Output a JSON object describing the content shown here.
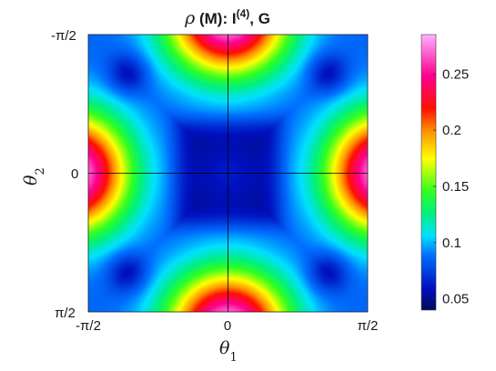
{
  "chart_data": {
    "type": "heatmap",
    "title_symbol": "ρ",
    "title_text": " (M):  I",
    "title_superscript": "(4)",
    "title_suffix": ", G",
    "xlabel": {
      "symbol": "θ",
      "subscript": "1"
    },
    "ylabel": {
      "symbol": "θ",
      "subscript": "2"
    },
    "xlim": [
      "-π/2",
      "π/2"
    ],
    "ylim": [
      "-π/2",
      "π/2"
    ],
    "y_axis_direction": "reversed",
    "x_ticks": [
      "-π/2",
      "0",
      "π/2"
    ],
    "y_ticks": [
      "-π/2",
      "0",
      "π/2"
    ],
    "center_crosshair": true,
    "colormap": "hsv",
    "colorbar": {
      "range": [
        0.04,
        0.285
      ],
      "ticks": [
        0.05,
        0.1,
        0.15,
        0.2,
        0.25
      ],
      "tick_labels": [
        "0.05",
        "0.1",
        "0.15",
        "0.2",
        "0.25"
      ]
    },
    "value_min": 0.04,
    "value_max": 0.285,
    "description_of_field": "Symmetric field: maxima (~0.285) at midpoints of all four edges, minima (~0.04) around the center square and at corner pockets."
  }
}
